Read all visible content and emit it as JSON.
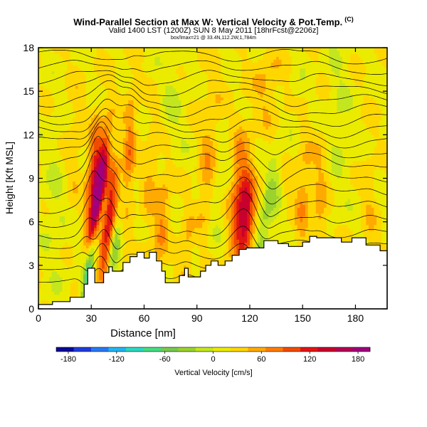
{
  "header": {
    "title": "Wind-Parallel Section at Max W: Vertical Velocity & Pot.Temp.",
    "copyright": "(C)",
    "subtitle": "Valid 1400 LST (1200Z) SUN 8 May 2011 [18hrFcst@2206z]",
    "info": "box/lmax=21 @ 33.4N,112.2W,1,784m"
  },
  "chart_data": {
    "type": "heatmap",
    "title": "Wind-Parallel Section at Max W: Vertical Velocity & Pot.Temp.",
    "xlabel": "Distance [nm]",
    "ylabel": "Height [Kft MSL]",
    "xlim": [
      0,
      198
    ],
    "ylim": [
      0,
      18
    ],
    "x_ticks": [
      0,
      30,
      60,
      90,
      120,
      150,
      180
    ],
    "y_ticks": [
      0,
      3,
      6,
      9,
      12,
      15,
      18
    ],
    "colorbar": {
      "label": "Vertical Velocity [cm/s]",
      "ticks": [
        -180,
        -120,
        -60,
        0,
        60,
        120,
        180
      ],
      "range": [
        -195,
        195
      ],
      "colors": [
        "#0a0a96",
        "#1e3cdc",
        "#2878f0",
        "#23b4f0",
        "#2dd7be",
        "#46dc82",
        "#78c850",
        "#9bd22d",
        "#c3e61e",
        "#ebeb00",
        "#ffd700",
        "#ffaa00",
        "#ff7d00",
        "#f04b00",
        "#e11414",
        "#c8002d",
        "#b40055",
        "#a0007d"
      ]
    },
    "terrain": [
      [
        0,
        0.3
      ],
      [
        8,
        0.3
      ],
      [
        8,
        0.5
      ],
      [
        18,
        0.5
      ],
      [
        18,
        0.8
      ],
      [
        26,
        0.8
      ],
      [
        26,
        1.7
      ],
      [
        28,
        1.7
      ],
      [
        28,
        2.8
      ],
      [
        32,
        2.8
      ],
      [
        32,
        1.8
      ],
      [
        37,
        1.8
      ],
      [
        37,
        2.5
      ],
      [
        40,
        2.5
      ],
      [
        40,
        2.9
      ],
      [
        42,
        2.9
      ],
      [
        42,
        2.6
      ],
      [
        48,
        2.6
      ],
      [
        48,
        3.2
      ],
      [
        52,
        3.2
      ],
      [
        52,
        3.6
      ],
      [
        56,
        3.6
      ],
      [
        56,
        3.9
      ],
      [
        60,
        3.9
      ],
      [
        60,
        3.5
      ],
      [
        63,
        3.5
      ],
      [
        63,
        3.9
      ],
      [
        67,
        3.9
      ],
      [
        67,
        3.3
      ],
      [
        70,
        3.3
      ],
      [
        70,
        2.6
      ],
      [
        72,
        2.6
      ],
      [
        72,
        1.8
      ],
      [
        80,
        1.8
      ],
      [
        80,
        2.3
      ],
      [
        83,
        2.3
      ],
      [
        83,
        2.8
      ],
      [
        85,
        2.8
      ],
      [
        85,
        2.2
      ],
      [
        92,
        2.2
      ],
      [
        92,
        2.6
      ],
      [
        95,
        2.6
      ],
      [
        95,
        3.0
      ],
      [
        98,
        3.0
      ],
      [
        98,
        3.3
      ],
      [
        102,
        3.3
      ],
      [
        102,
        3.0
      ],
      [
        106,
        3.0
      ],
      [
        106,
        3.3
      ],
      [
        110,
        3.3
      ],
      [
        110,
        3.7
      ],
      [
        114,
        3.7
      ],
      [
        114,
        4.1
      ],
      [
        118,
        4.1
      ],
      [
        118,
        4.2
      ],
      [
        128,
        4.2
      ],
      [
        128,
        4.7
      ],
      [
        136,
        4.7
      ],
      [
        136,
        4.5
      ],
      [
        142,
        4.5
      ],
      [
        142,
        4.3
      ],
      [
        150,
        4.3
      ],
      [
        150,
        4.6
      ],
      [
        154,
        4.6
      ],
      [
        154,
        5.0
      ],
      [
        158,
        5.0
      ],
      [
        158,
        4.9
      ],
      [
        172,
        4.9
      ],
      [
        172,
        4.6
      ],
      [
        178,
        4.6
      ],
      [
        178,
        4.9
      ],
      [
        186,
        4.9
      ],
      [
        186,
        4.4
      ],
      [
        194,
        4.4
      ],
      [
        194,
        4.0
      ],
      [
        198,
        4.0
      ]
    ],
    "contour_base": [
      1.9,
      2.7,
      3.5,
      4.3,
      5.1,
      6.0,
      7.0,
      8.0,
      9.0,
      10.0,
      10.8,
      11.6,
      12.3,
      13.0,
      13.7,
      14.4,
      15.1,
      15.8,
      16.6,
      17.4
    ],
    "features": [
      {
        "x": 34,
        "z": 7.5,
        "w": 200,
        "sx": 2.5,
        "sz": 3.0,
        "tilt": 0.7
      },
      {
        "x": 30,
        "z": 3.5,
        "w": -140,
        "sx": 2.0,
        "sz": 2.5,
        "tilt": 1.1
      },
      {
        "x": 40,
        "z": 6.0,
        "w": 110,
        "sx": 2.5,
        "sz": 3.0,
        "tilt": 0.6
      },
      {
        "x": 31,
        "z": 9.5,
        "w": 80,
        "sx": 2.5,
        "sz": 2.5,
        "tilt": 0.5
      },
      {
        "x": 43,
        "z": 4.0,
        "w": -60,
        "sx": 2.0,
        "sz": 2.0,
        "tilt": 0.9
      },
      {
        "x": 51,
        "z": 9.0,
        "w": 70,
        "sx": 2.5,
        "sz": 4.0,
        "tilt": 0.3
      },
      {
        "x": 50,
        "z": 6.5,
        "w": -40,
        "sx": 2.0,
        "sz": 2.5,
        "tilt": 0.6
      },
      {
        "x": 70,
        "z": 6.0,
        "w": 45,
        "sx": 3.0,
        "sz": 3.0,
        "tilt": 0.5
      },
      {
        "x": 64,
        "z": 9.5,
        "w": 30,
        "sx": 3.0,
        "sz": 3.5,
        "tilt": 0.5
      },
      {
        "x": 118,
        "z": 6.5,
        "w": 100,
        "sx": 3.5,
        "sz": 1.8,
        "tilt": 0.2
      },
      {
        "x": 114,
        "z": 7.5,
        "w": 65,
        "sx": 4.5,
        "sz": 3.5,
        "tilt": 0.2
      },
      {
        "x": 128,
        "z": 6.0,
        "w": -45,
        "sx": 2.5,
        "sz": 3.5,
        "tilt": 1.0
      },
      {
        "x": 138,
        "z": 9.5,
        "w": -35,
        "sx": 3.0,
        "sz": 3.5,
        "tilt": 1.0
      },
      {
        "x": 104,
        "z": 9.5,
        "w": -30,
        "sx": 4.0,
        "sz": 3.0,
        "tilt": 0.5
      },
      {
        "x": 150,
        "z": 7.5,
        "w": 40,
        "sx": 3.0,
        "sz": 2.8,
        "tilt": 0.3
      },
      {
        "x": 140,
        "z": 10.5,
        "w": 35,
        "sx": 3.0,
        "sz": 2.5,
        "tilt": 0.3
      },
      {
        "x": 160,
        "z": 9.0,
        "w": 25,
        "sx": 3.5,
        "sz": 3.0,
        "tilt": 0.2
      },
      {
        "x": 95,
        "z": 8.5,
        "w": 30,
        "sx": 3.0,
        "sz": 2.5,
        "tilt": 0.3
      },
      {
        "x": 84,
        "z": 4.0,
        "w": 35,
        "sx": 2.5,
        "sz": 2.0,
        "tilt": 0.2
      },
      {
        "x": 100,
        "z": 12.0,
        "w": 25,
        "sx": 6.0,
        "sz": 3.0,
        "tilt": 0.0
      },
      {
        "x": 20,
        "z": 11.0,
        "w": 20,
        "sx": 4.0,
        "sz": 3.5,
        "tilt": 0.3
      },
      {
        "x": 10,
        "z": 7.0,
        "w": -20,
        "sx": 5.0,
        "sz": 4.0,
        "tilt": 0.0
      },
      {
        "x": 75,
        "z": 14.0,
        "w": -20,
        "sx": 6.0,
        "sz": 3.0,
        "tilt": 0.0
      },
      {
        "x": 130,
        "z": 15.5,
        "w": 30,
        "sx": 5.0,
        "sz": 2.0,
        "tilt": 0.2
      },
      {
        "x": 170,
        "z": 13.0,
        "w": -20,
        "sx": 5.0,
        "sz": 4.0,
        "tilt": 0.0
      },
      {
        "x": 188,
        "z": 7.0,
        "w": 20,
        "sx": 3.0,
        "sz": 3.0,
        "tilt": 0.0
      },
      {
        "x": 160,
        "z": 5.8,
        "w": 25,
        "sx": 2.5,
        "sz": 1.5,
        "tilt": 0.0
      }
    ]
  }
}
